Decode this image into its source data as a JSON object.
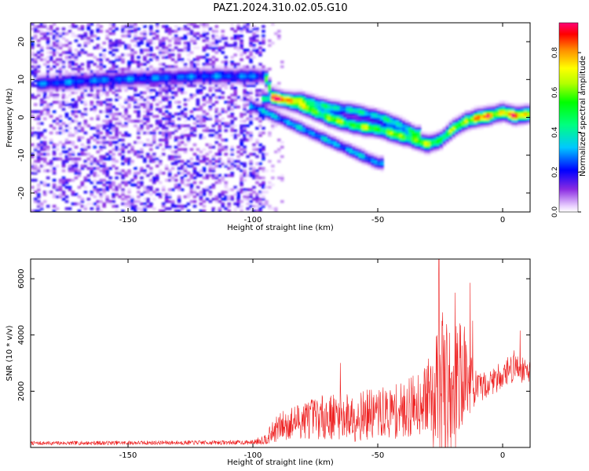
{
  "figure": {
    "title": "PAZ1.2024.310.02.05.G10"
  },
  "chart_data": [
    {
      "type": "heatmap",
      "title": "PAZ1.2024.310.02.05.G10",
      "xlabel": "Height of straight line (km)",
      "ylabel": "Frequency (Hz)",
      "xlim": [
        -189,
        11
      ],
      "ylim": [
        -25,
        25
      ],
      "xticks": [
        -150,
        -100,
        -50,
        0
      ],
      "yticks": [
        -20,
        -10,
        0,
        10,
        20
      ],
      "colorbar": {
        "label": "Normalized spectral amplitude",
        "range": [
          0,
          0.95
        ],
        "ticks": [
          0.0,
          0.2,
          0.4,
          0.6,
          0.8
        ]
      },
      "ridges": [
        {
          "name": "main",
          "points": [
            [
              -185,
              9
            ],
            [
              -160,
              10
            ],
            [
              -140,
              10.5
            ],
            [
              -120,
              11
            ],
            [
              -100,
              11
            ],
            [
              -95,
              11
            ],
            [
              -92,
              5.5
            ],
            [
              -80,
              3
            ],
            [
              -70,
              0
            ],
            [
              -60,
              -2
            ],
            [
              -50,
              -3
            ],
            [
              -40,
              -5
            ],
            [
              -30,
              -7
            ],
            [
              -25,
              -6
            ],
            [
              -20,
              -3
            ],
            [
              -15,
              -1
            ],
            [
              -10,
              0
            ],
            [
              -5,
              0.5
            ],
            [
              0,
              1.5
            ],
            [
              5,
              0.5
            ],
            [
              11,
              1
            ]
          ]
        },
        {
          "name": "lower-branch",
          "points": [
            [
              -100,
              3
            ],
            [
              -90,
              0
            ],
            [
              -80,
              -3
            ],
            [
              -70,
              -6
            ],
            [
              -60,
              -9
            ],
            [
              -50,
              -12
            ]
          ]
        },
        {
          "name": "upper-branch",
          "points": [
            [
              -95,
              5
            ],
            [
              -80,
              5
            ],
            [
              -70,
              3
            ],
            [
              -60,
              2
            ],
            [
              -50,
              0.5
            ],
            [
              -40,
              -2
            ],
            [
              -35,
              -4
            ]
          ]
        }
      ]
    },
    {
      "type": "line",
      "xlabel": "Height of straight line (km)",
      "ylabel": "SNR (10 * v/v)",
      "xlim": [
        -189,
        11
      ],
      "ylim": [
        0,
        6700
      ],
      "xticks": [
        -150,
        -100,
        -50,
        0
      ],
      "yticks": [
        2000,
        4000,
        6000
      ],
      "color": "#ee2222",
      "envelope": [
        {
          "x": -189,
          "y_mean": 150,
          "y_amp": 70
        },
        {
          "x": -100,
          "y_mean": 180,
          "y_amp": 80
        },
        {
          "x": -95,
          "y_mean": 300,
          "y_amp": 200
        },
        {
          "x": -90,
          "y_mean": 700,
          "y_amp": 500
        },
        {
          "x": -80,
          "y_mean": 1000,
          "y_amp": 700
        },
        {
          "x": -70,
          "y_mean": 1100,
          "y_amp": 800
        },
        {
          "x": -60,
          "y_mean": 1100,
          "y_amp": 900
        },
        {
          "x": -50,
          "y_mean": 1200,
          "y_amp": 900
        },
        {
          "x": -40,
          "y_mean": 1300,
          "y_amp": 1000
        },
        {
          "x": -30,
          "y_mean": 1800,
          "y_amp": 1300
        },
        {
          "x": -25,
          "y_mean": 2400,
          "y_amp": 2200
        },
        {
          "x": -20,
          "y_mean": 2500,
          "y_amp": 2200
        },
        {
          "x": -15,
          "y_mean": 2600,
          "y_amp": 1800
        },
        {
          "x": -10,
          "y_mean": 2100,
          "y_amp": 500
        },
        {
          "x": -5,
          "y_mean": 2300,
          "y_amp": 500
        },
        {
          "x": 0,
          "y_mean": 2600,
          "y_amp": 500
        },
        {
          "x": 5,
          "y_mean": 2900,
          "y_amp": 600
        },
        {
          "x": 11,
          "y_mean": 2700,
          "y_amp": 400
        }
      ],
      "peaks": [
        {
          "x": -65,
          "y": 3000
        },
        {
          "x": -25.5,
          "y": 6700
        },
        {
          "x": -24,
          "y": 4800
        },
        {
          "x": -19,
          "y": 5500
        },
        {
          "x": -13,
          "y": 5850
        },
        {
          "x": -12,
          "y": 4500
        },
        {
          "x": 7,
          "y": 4150
        }
      ]
    }
  ]
}
